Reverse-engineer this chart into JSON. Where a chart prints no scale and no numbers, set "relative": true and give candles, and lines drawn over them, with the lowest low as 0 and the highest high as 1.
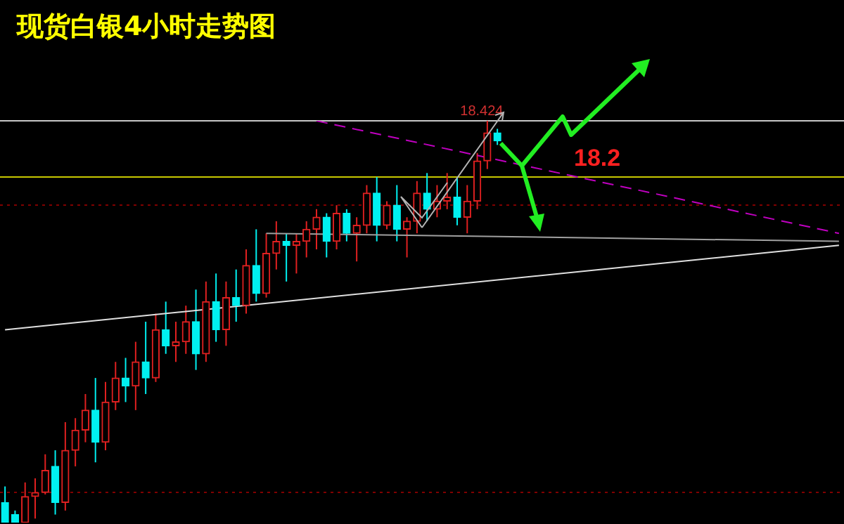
{
  "chart_data": {
    "type": "candlestick",
    "title": "现货白银4小时走势图",
    "relative": true,
    "categories": [
      null,
      null,
      null,
      null,
      null,
      null,
      null,
      null,
      null,
      null,
      null,
      null,
      null,
      null,
      null,
      null,
      null,
      null,
      null,
      null,
      null,
      null,
      null,
      null,
      null,
      null,
      null,
      null,
      null,
      null,
      null,
      null,
      null,
      null,
      null,
      null,
      null,
      null,
      null,
      null,
      null,
      null,
      null,
      null,
      null,
      null,
      null,
      null,
      null,
      null,
      null,
      null,
      null,
      null,
      null,
      null,
      null,
      null,
      null,
      null,
      null,
      null,
      null,
      null,
      null,
      null,
      null,
      null,
      null,
      null,
      null,
      null,
      null,
      null,
      null,
      null,
      null,
      null,
      null,
      null,
      null,
      null,
      null,
      null
    ],
    "ohlc": [
      [
        0.05,
        0.09,
        0,
        0
      ],
      [
        0.02,
        0.03,
        0,
        0
      ],
      [
        0,
        0.1,
        0,
        0.065
      ],
      [
        0.065,
        0.11,
        0.01,
        0.075
      ],
      [
        0.075,
        0.17,
        0.07,
        0.13
      ],
      [
        0.14,
        0.18,
        0.02,
        0.05
      ],
      [
        0.05,
        0.25,
        0.03,
        0.18
      ],
      [
        0.18,
        0.26,
        0.14,
        0.23
      ],
      [
        0.23,
        0.32,
        0.2,
        0.28
      ],
      [
        0.28,
        0.36,
        0.15,
        0.2
      ],
      [
        0.2,
        0.35,
        0.18,
        0.3
      ],
      [
        0.3,
        0.4,
        0.28,
        0.36
      ],
      [
        0.36,
        0.41,
        0.3,
        0.34
      ],
      [
        0.34,
        0.45,
        0.28,
        0.4
      ],
      [
        0.4,
        0.5,
        0.32,
        0.36
      ],
      [
        0.36,
        0.52,
        0.35,
        0.48
      ],
      [
        0.48,
        0.55,
        0.42,
        0.44
      ],
      [
        0.44,
        0.5,
        0.4,
        0.45
      ],
      [
        0.45,
        0.54,
        0.42,
        0.5
      ],
      [
        0.5,
        0.58,
        0.38,
        0.42
      ],
      [
        0.42,
        0.6,
        0.4,
        0.55
      ],
      [
        0.55,
        0.62,
        0.45,
        0.48
      ],
      [
        0.48,
        0.6,
        0.44,
        0.56
      ],
      [
        0.56,
        0.63,
        0.5,
        0.54
      ],
      [
        0.54,
        0.68,
        0.52,
        0.64
      ],
      [
        0.64,
        0.73,
        0.55,
        0.57
      ],
      [
        0.57,
        0.72,
        0.56,
        0.67
      ],
      [
        0.67,
        0.75,
        0.63,
        0.7
      ],
      [
        0.7,
        0.72,
        0.6,
        0.69
      ],
      [
        0.69,
        0.72,
        0.62,
        0.7
      ],
      [
        0.7,
        0.75,
        0.66,
        0.73
      ],
      [
        0.73,
        0.78,
        0.68,
        0.76
      ],
      [
        0.76,
        0.77,
        0.66,
        0.7
      ],
      [
        0.7,
        0.79,
        0.68,
        0.77
      ],
      [
        0.77,
        0.78,
        0.7,
        0.72
      ],
      [
        0.72,
        0.76,
        0.65,
        0.74
      ],
      [
        0.74,
        0.84,
        0.72,
        0.82
      ],
      [
        0.82,
        0.86,
        0.7,
        0.74
      ],
      [
        0.74,
        0.8,
        0.73,
        0.79
      ],
      [
        0.79,
        0.84,
        0.7,
        0.73
      ],
      [
        0.73,
        0.76,
        0.66,
        0.75
      ],
      [
        0.75,
        0.85,
        0.72,
        0.82
      ],
      [
        0.82,
        0.87,
        0.75,
        0.78
      ],
      [
        0.78,
        0.84,
        0.76,
        0.8
      ],
      [
        0.8,
        0.87,
        0.78,
        0.81
      ],
      [
        0.81,
        0.86,
        0.74,
        0.76
      ],
      [
        0.76,
        0.84,
        0.72,
        0.8
      ],
      [
        0.8,
        0.92,
        0.78,
        0.9
      ],
      [
        0.9,
        1,
        0.88,
        0.97
      ],
      [
        0.97,
        0.98,
        0.94,
        0.95
      ],
      null,
      null,
      null,
      null,
      null,
      null,
      null,
      null,
      null,
      null,
      null,
      null,
      null,
      null,
      null,
      null,
      null,
      null,
      null,
      null,
      null,
      null,
      null,
      null,
      null,
      null,
      null,
      null,
      null,
      null,
      null,
      null,
      null,
      null
    ],
    "series": [
      {
        "type": "line",
        "color": "#e0e0e0",
        "values": [
          0.48,
          null,
          null,
          null,
          null,
          null,
          null,
          null,
          null,
          null,
          null,
          null,
          null,
          null,
          null,
          null,
          null,
          null,
          null,
          null,
          null,
          null,
          null,
          null,
          null,
          null,
          null,
          null,
          null,
          null,
          null,
          null,
          null,
          null,
          null,
          null,
          null,
          null,
          null,
          null,
          null,
          null,
          null,
          null,
          null,
          null,
          null,
          null,
          null,
          null,
          null,
          null,
          null,
          null,
          null,
          null,
          null,
          null,
          null,
          null,
          null,
          null,
          null,
          null,
          null,
          null,
          null,
          null,
          null,
          null,
          null,
          null,
          null,
          null,
          null,
          null,
          null,
          null,
          null,
          null,
          null,
          null,
          null,
          0.69
        ]
      },
      {
        "type": "line",
        "color": "#a0a0a0",
        "values": [
          null,
          null,
          null,
          null,
          null,
          null,
          null,
          null,
          null,
          null,
          null,
          null,
          null,
          null,
          null,
          null,
          null,
          null,
          null,
          null,
          null,
          null,
          null,
          null,
          null,
          null,
          0.72,
          null,
          null,
          null,
          null,
          null,
          null,
          null,
          null,
          null,
          null,
          null,
          null,
          null,
          null,
          null,
          null,
          null,
          null,
          null,
          null,
          null,
          null,
          null,
          null,
          null,
          null,
          null,
          null,
          null,
          null,
          null,
          null,
          null,
          null,
          null,
          null,
          null,
          null,
          null,
          null,
          null,
          null,
          null,
          null,
          null,
          null,
          null,
          null,
          null,
          null,
          null,
          null,
          null,
          null,
          null,
          null,
          0.7
        ]
      },
      {
        "type": "line",
        "color": "#c000c0",
        "line_style": "dashed",
        "values": [
          null,
          null,
          null,
          null,
          null,
          null,
          null,
          null,
          null,
          null,
          null,
          null,
          null,
          null,
          null,
          null,
          null,
          null,
          null,
          null,
          null,
          null,
          null,
          null,
          null,
          null,
          null,
          null,
          null,
          null,
          null,
          1,
          null,
          null,
          null,
          null,
          null,
          null,
          null,
          null,
          null,
          null,
          null,
          null,
          null,
          null,
          null,
          null,
          null,
          null,
          null,
          null,
          null,
          null,
          null,
          null,
          null,
          null,
          null,
          null,
          null,
          null,
          null,
          null,
          null,
          null,
          null,
          null,
          null,
          null,
          null,
          null,
          null,
          null,
          null,
          null,
          null,
          null,
          null,
          null,
          null,
          null,
          null,
          0.72
        ]
      }
    ],
    "ref_lines": [
      {
        "axis": "y",
        "value": 1,
        "color": "#c8c8c8"
      },
      {
        "axis": "y",
        "value": 0.86,
        "color": "#c8c800"
      },
      {
        "axis": "y",
        "value": 0.79,
        "color": "#800000",
        "line_style": "dotted"
      },
      {
        "axis": "y",
        "value": 0.075,
        "color": "#800000",
        "line_style": "dotted"
      }
    ],
    "annotations": [
      "18.424",
      "18.2"
    ]
  }
}
